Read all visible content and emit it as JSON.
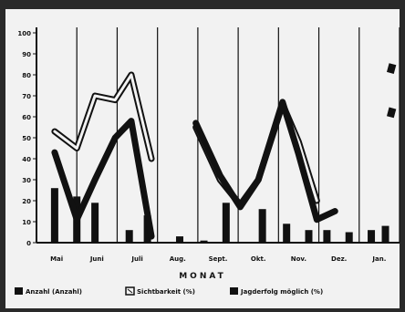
{
  "chart_data": {
    "type": "line",
    "xlabel": "MONAT",
    "ylabel": "",
    "ylim": [
      0,
      100
    ],
    "y_ticks": [
      0,
      10,
      20,
      30,
      40,
      50,
      60,
      70,
      80,
      90,
      100
    ],
    "grid": "vertical",
    "legend_position": "bottom",
    "categories": [
      "Mai",
      "Juni",
      "Juli",
      "Aug.",
      "Sept.",
      "Okt.",
      "Nov.",
      "Dez.",
      "Jan."
    ],
    "bars": {
      "name": "Anzahl (Anzahl)",
      "x": [
        0.45,
        1.0,
        1.45,
        2.3,
        2.75,
        3.55,
        4.15,
        4.7,
        5.6,
        6.2,
        6.75,
        7.2,
        7.75,
        8.3,
        8.65
      ],
      "values": [
        26,
        22,
        19,
        6,
        13,
        3,
        1,
        19,
        16,
        9,
        6,
        6,
        5,
        6,
        8
      ]
    },
    "series": [
      {
        "name": "Sichtbarkeit (%)",
        "style": "double",
        "segments": [
          {
            "x": [
              0.45,
              1.0,
              1.45,
              1.95,
              2.35,
              2.85
            ],
            "values": [
              53,
              45,
              70,
              68,
              80,
              40
            ]
          },
          {
            "x": [
              3.95,
              4.55,
              5.05,
              5.5,
              6.1,
              6.5,
              6.95
            ],
            "values": [
              55,
              30,
              18,
              30,
              66,
              48,
              20
            ]
          }
        ]
      },
      {
        "name": "Jagderfolg möglich (%)",
        "style": "thick",
        "segments": [
          {
            "x": [
              0.45,
              1.0,
              1.45,
              1.95,
              2.35,
              2.85
            ],
            "values": [
              43,
              11,
              30,
              50,
              58,
              3
            ]
          },
          {
            "x": [
              3.95,
              4.55,
              5.05,
              5.5,
              6.1,
              6.5,
              6.95,
              7.4
            ],
            "values": [
              57,
              32,
              17,
              30,
              67,
              42,
              11,
              15
            ]
          }
        ]
      }
    ],
    "markers": {
      "x": [
        8.8,
        8.8
      ],
      "values": [
        83,
        62
      ]
    },
    "legend": [
      {
        "label": "Anzahl (Anzahl)",
        "swatch": "solid"
      },
      {
        "label": "Sichtbarkeit (%)",
        "swatch": "hatched"
      },
      {
        "label": "Jagderfolg möglich (%)",
        "swatch": "solid"
      }
    ]
  },
  "colors": {
    "paper": "#f2f2f2",
    "ink": "#111111",
    "border": "#2a2a2a"
  }
}
